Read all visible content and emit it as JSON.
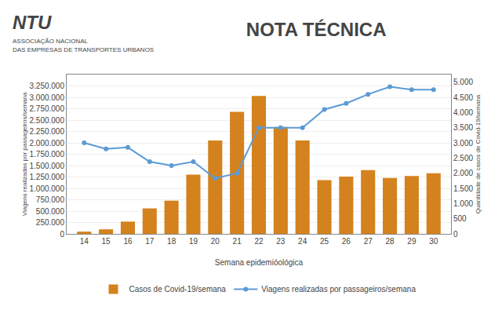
{
  "chart_data": {
    "type": "combo",
    "title": "NOTA TÉCNICA",
    "annotations": [
      "NTU",
      "ASSOCIAÇÃO NACIONAL",
      "DAS EMPRESAS DE TRANSPORTES URBANOS"
    ],
    "x_label": "Semana epidemióológica",
    "y_label": "Viagens realizadas por passageiros/semana",
    "y2_label": "Quantidade de casos de Covid-19/semana",
    "x": [
      14,
      15,
      16,
      17,
      18,
      19,
      20,
      21,
      22,
      23,
      24,
      25,
      26,
      27,
      28,
      29,
      30
    ],
    "xlim": [
      13.2,
      30.8
    ],
    "xticks": [
      14,
      15,
      16,
      17,
      18,
      19,
      20,
      21,
      22,
      23,
      24,
      25,
      26,
      27,
      28,
      29,
      30
    ],
    "ylim": [
      0,
      3500000
    ],
    "yticks": [
      0,
      {
        "value": 250000,
        "label": "250.000"
      },
      {
        "value": 500000,
        "label": "500.000"
      },
      {
        "value": 750000,
        "label": "750.000"
      },
      {
        "value": 1000000,
        "label": "1.000.000"
      },
      {
        "value": 1250000,
        "label": "1.250.000"
      },
      {
        "value": 1500000,
        "label": "1.500.000"
      },
      {
        "value": 1750000,
        "label": "1.750.000"
      },
      {
        "value": 2000000,
        "label": "2.000.000"
      },
      {
        "value": 2250000,
        "label": "2.250.000"
      },
      {
        "value": 2500000,
        "label": "2.500.000"
      },
      {
        "value": 2750000,
        "label": "2.750.000"
      },
      {
        "value": 3000000,
        "label": "3.000.000"
      },
      {
        "value": 3250000,
        "label": "3.250.000"
      }
    ],
    "y2lim": [
      0,
      5250
    ],
    "y2ticks": [
      0,
      500,
      {
        "value": 1000,
        "label": "1.000"
      },
      {
        "value": 1500,
        "label": "1.500"
      },
      {
        "value": 2000,
        "label": "2.000"
      },
      {
        "value": 2500,
        "label": "2.500"
      },
      {
        "value": 3000,
        "label": "3.000"
      },
      {
        "value": 3500,
        "label": "3.500"
      },
      {
        "value": 4000,
        "label": "4.000"
      },
      {
        "value": 4500,
        "label": "4.500"
      },
      {
        "value": 5000,
        "label": "5.000"
      }
    ],
    "grid": true,
    "legend": "bottom",
    "series": [
      {
        "name": "Casos de Covid-19/semana",
        "type": "bar",
        "color": "#d4821e",
        "values": [
          50000,
          100000,
          270000,
          560000,
          730000,
          1300000,
          2050000,
          2680000,
          3030000,
          2350000,
          2050000,
          1180000,
          1260000,
          1400000,
          1230000,
          1270000,
          1330000
        ]
      },
      {
        "name": "Viagens realizadas por passageiros/semana",
        "type": "line",
        "axis": "y2",
        "color": "#5b9bd5",
        "marker": "circle",
        "values": [
          3000,
          2800,
          2850,
          2380,
          2250,
          2380,
          1830,
          2000,
          3500,
          3500,
          3500,
          4100,
          4300,
          4600,
          4850,
          4750,
          4750
        ]
      }
    ]
  }
}
